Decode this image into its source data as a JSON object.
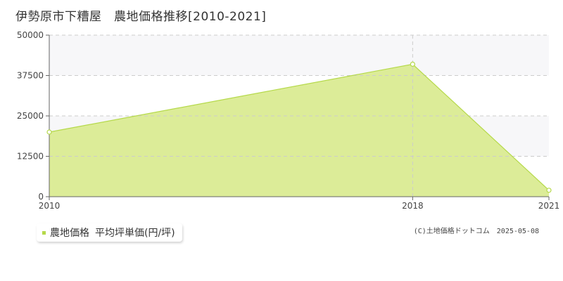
{
  "title": "伊勢原市下糟屋　農地価格推移[2010-2021]",
  "legend": {
    "series_name": "農地価格",
    "unit_label": "平均坪単価(円/坪)"
  },
  "copyright": "(C)土地価格ドットコム　2025-05-08",
  "colors": {
    "fill": "#dcec98",
    "line": "#b5d94a",
    "band": "#f7f7f9",
    "grid": "#cccccc",
    "axis": "#666666"
  },
  "chart_data": {
    "type": "area",
    "x": [
      2010,
      2018,
      2021
    ],
    "series": [
      {
        "name": "農地価格",
        "values": [
          20000,
          41000,
          2000
        ]
      }
    ],
    "xlim": [
      2010,
      2021
    ],
    "ylim": [
      0,
      50000
    ],
    "yticks": [
      0,
      12500,
      25000,
      37500,
      50000
    ],
    "xticks": [
      2010,
      2018,
      2021
    ],
    "grid": true
  }
}
